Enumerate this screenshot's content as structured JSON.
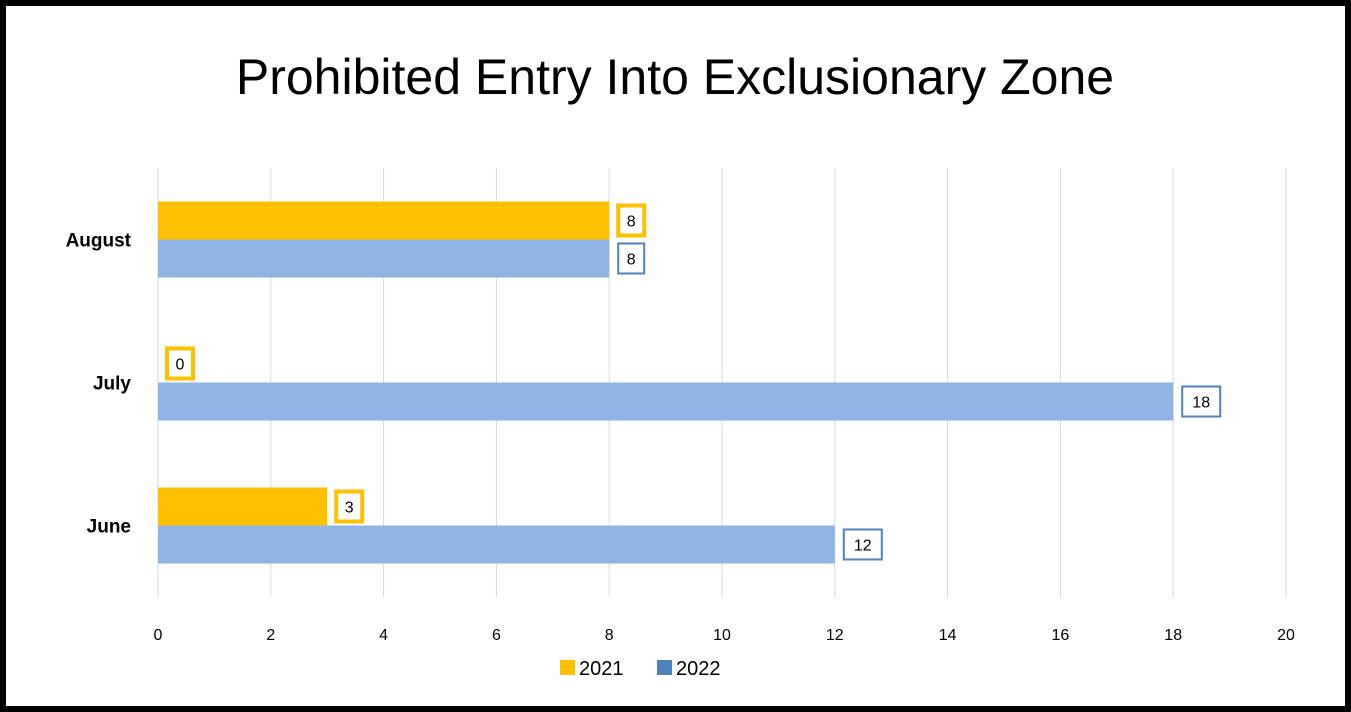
{
  "colors": {
    "series_2021": "#FFC000",
    "series_2022": "#8EB4E3",
    "label_border_2022": "#4F81BD",
    "gridline": "#D9D9D9"
  },
  "chart_data": {
    "type": "bar",
    "orientation": "horizontal",
    "title": "Prohibited Entry Into Exclusionary Zone",
    "categories": [
      "June",
      "July",
      "August"
    ],
    "series": [
      {
        "name": "2021",
        "values": [
          3,
          0,
          8
        ]
      },
      {
        "name": "2022",
        "values": [
          12,
          18,
          8
        ]
      }
    ],
    "xlim": [
      0,
      20
    ],
    "xticks": [
      "0",
      "2",
      "4",
      "6",
      "8",
      "10",
      "12",
      "14",
      "16",
      "18",
      "20"
    ],
    "grid": true,
    "legend_position": "bottom",
    "data_labels": true
  }
}
